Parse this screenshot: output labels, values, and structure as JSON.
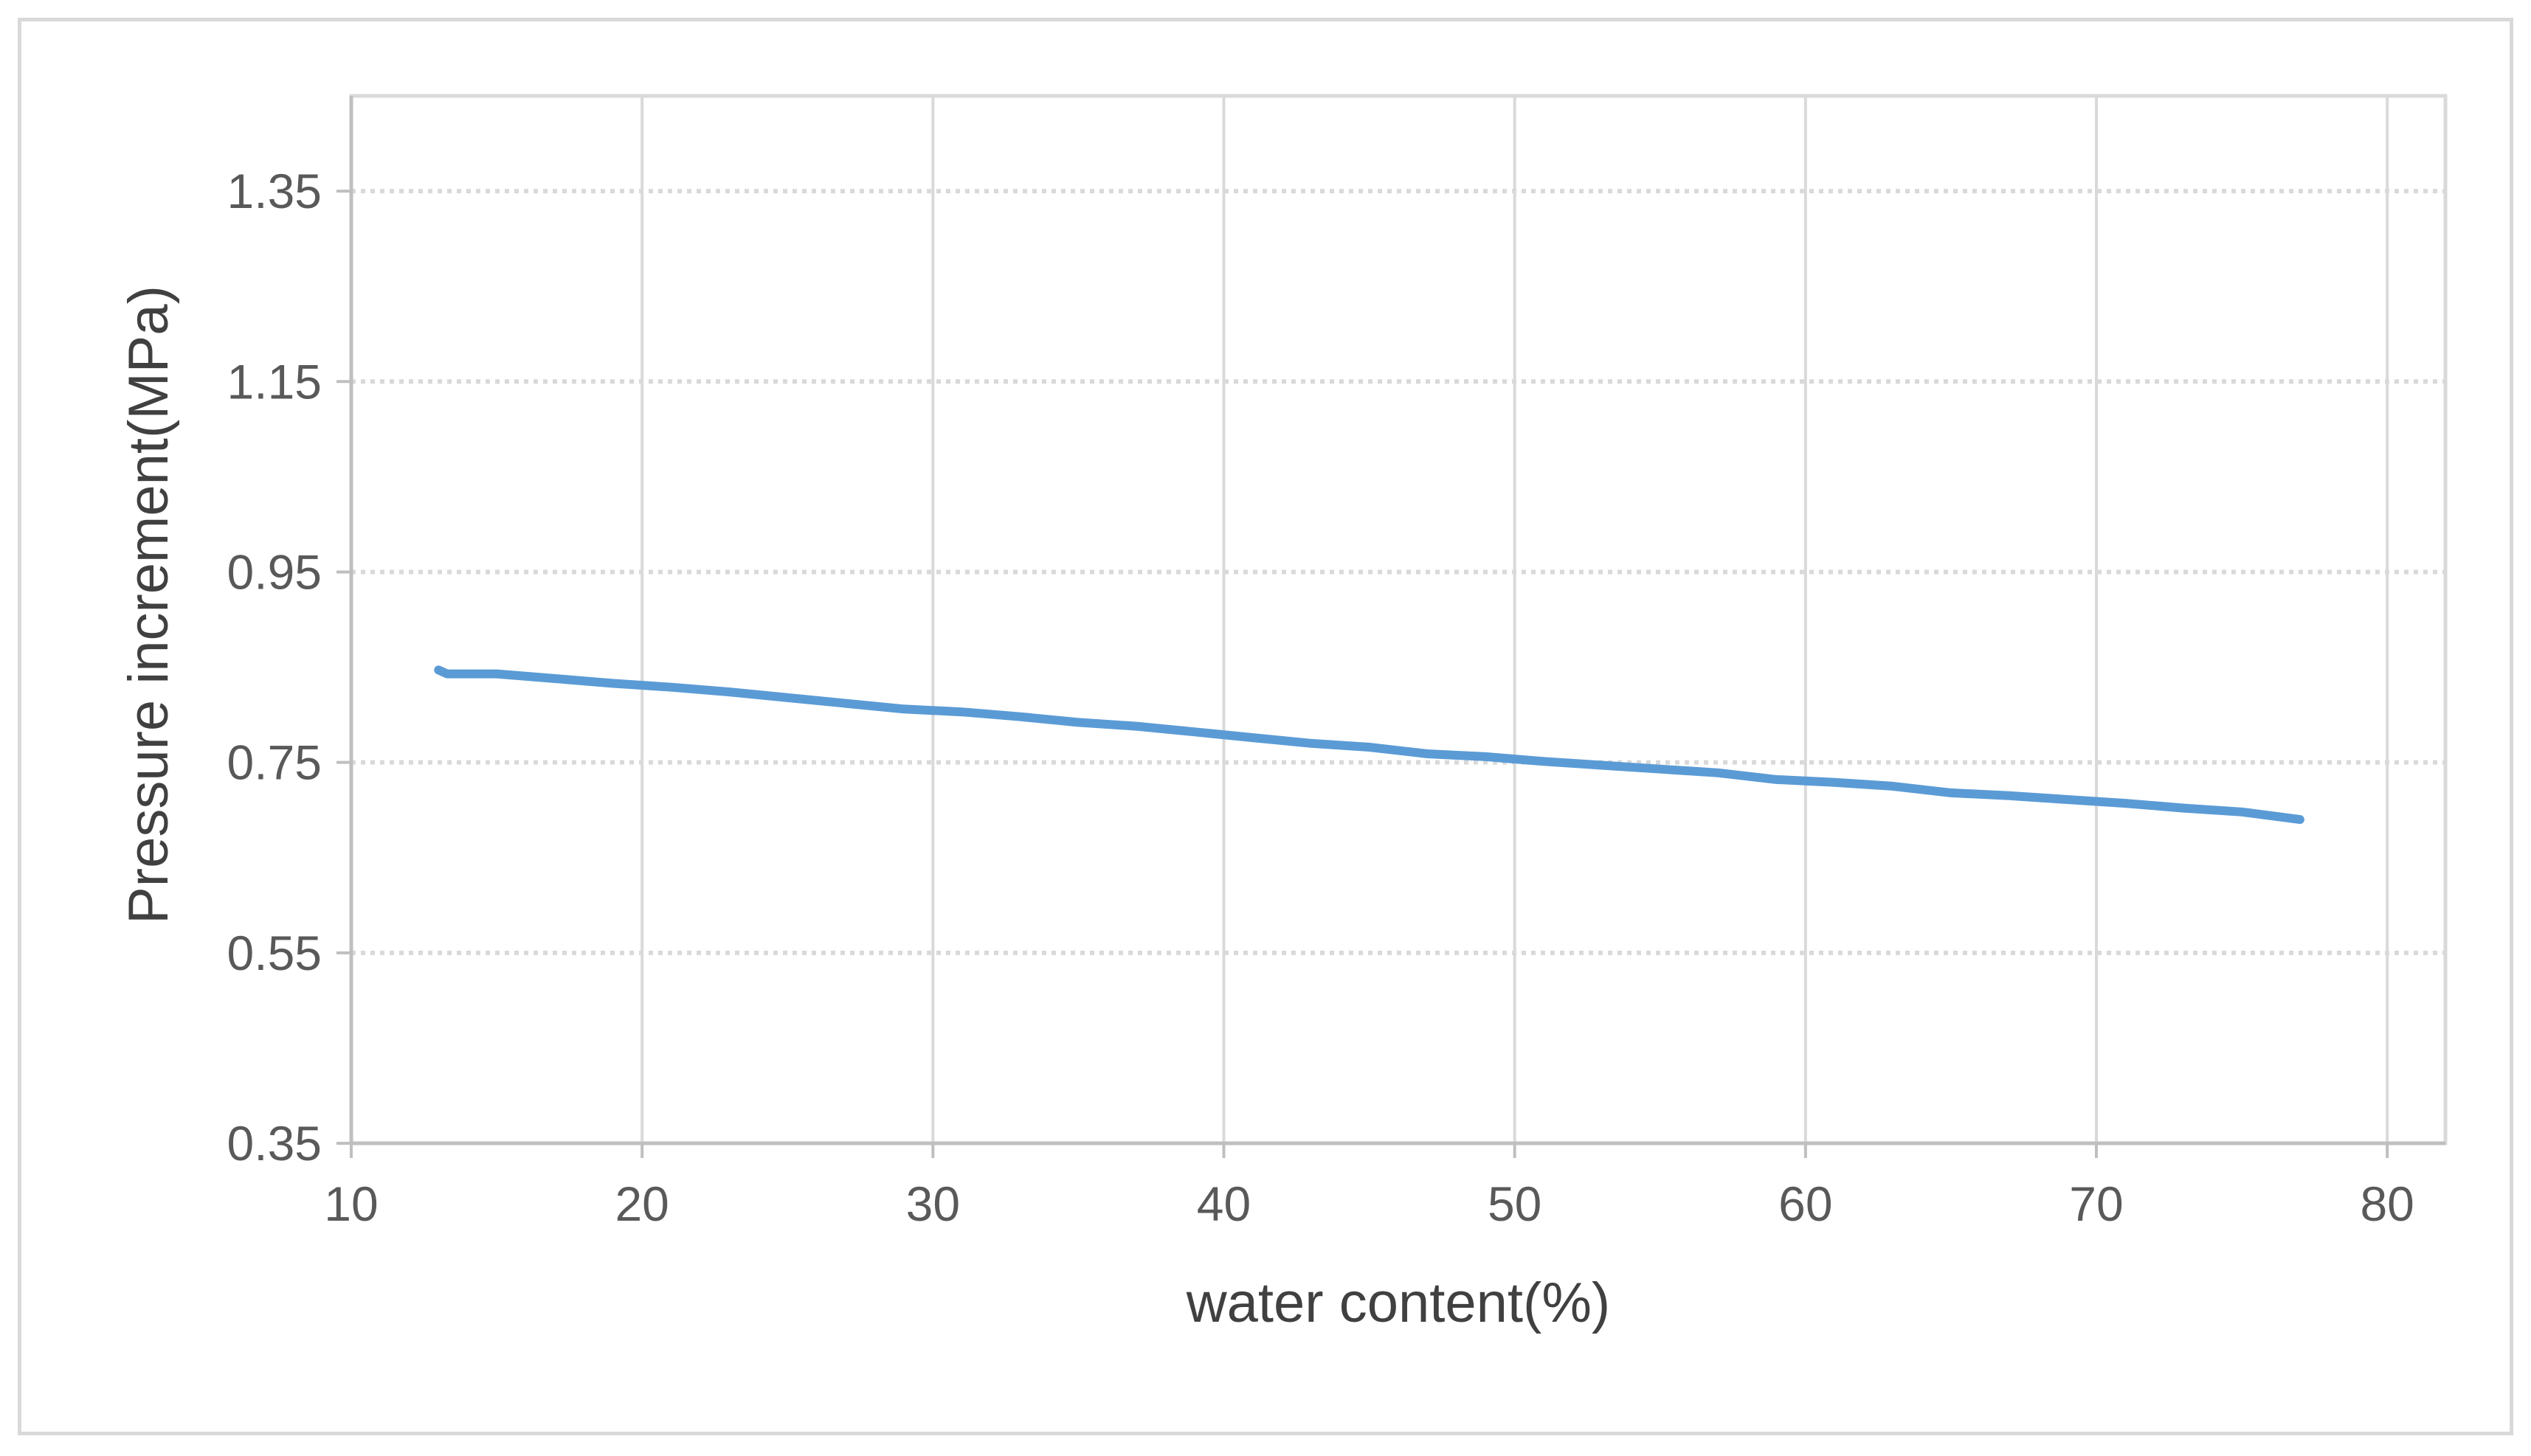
{
  "chart_data": {
    "type": "line",
    "title": "",
    "xlabel": "water content(%)",
    "ylabel": "Pressure increment(MPa)",
    "xlim": [
      10,
      82
    ],
    "ylim": [
      0.35,
      1.45
    ],
    "xticks": [
      10,
      20,
      30,
      40,
      50,
      60,
      70,
      80
    ],
    "xtick_labels": [
      "10",
      "20",
      "30",
      "40",
      "50",
      "60",
      "70",
      "80"
    ],
    "yticks": [
      0.35,
      0.55,
      0.75,
      0.95,
      1.15,
      1.35
    ],
    "ytick_labels": [
      "0.35",
      "0.55",
      "0.75",
      "0.95",
      "1.15",
      "1.35"
    ],
    "grid": {
      "x": "solid",
      "y": "dotted"
    },
    "legend": "none",
    "series": [
      {
        "color": "#5b9bd5",
        "x": [
          13.0,
          13.3,
          15.0,
          17.0,
          19.0,
          21.0,
          23.0,
          25.0,
          27.0,
          29.0,
          31.0,
          33.0,
          35.0,
          37.0,
          39.0,
          41.0,
          43.0,
          45.0,
          47.0,
          49.0,
          51.0,
          53.0,
          55.0,
          57.0,
          59.0,
          61.0,
          63.0,
          65.0,
          67.0,
          69.0,
          71.0,
          73.0,
          75.0,
          77.0
        ],
        "y": [
          0.847,
          0.843,
          0.843,
          0.838,
          0.833,
          0.829,
          0.824,
          0.818,
          0.812,
          0.806,
          0.803,
          0.798,
          0.792,
          0.788,
          0.782,
          0.776,
          0.77,
          0.766,
          0.759,
          0.756,
          0.751,
          0.747,
          0.743,
          0.739,
          0.732,
          0.729,
          0.725,
          0.718,
          0.715,
          0.711,
          0.707,
          0.702,
          0.698,
          0.69
        ]
      }
    ]
  }
}
